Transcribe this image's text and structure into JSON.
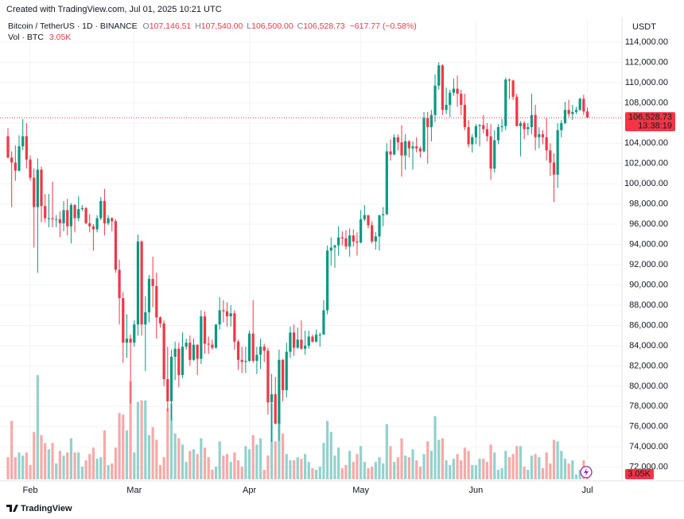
{
  "watermark": "Created with TradingView.com, Jul 01, 2025 10:21 UTC",
  "brand": "TradingView",
  "legend": {
    "title": "Bitcoin / TetherUS · 1D · BINANCE",
    "ohlc": [
      {
        "key": "O",
        "value": "107,146.51"
      },
      {
        "key": "H",
        "value": "107,540.00"
      },
      {
        "key": "L",
        "value": "106,500.00"
      },
      {
        "key": "C",
        "value": "106,528.73"
      }
    ],
    "change": "−617.77 (−0.58%)",
    "volume_name": "Vol · BTC"
  },
  "chart_data": {
    "type": "candlestick",
    "y_unit": "USDT",
    "up_color": "#089981",
    "down_color": "#f23645",
    "volume_up_color": "#92d2cc",
    "volume_down_color": "#f7a9a7",
    "ylim": [
      70800,
      116200
    ],
    "yticks": [
      {
        "value": 72000,
        "label": "72,000.00"
      },
      {
        "value": 74000,
        "label": "74,000.00"
      },
      {
        "value": 76000,
        "label": "76,000.00"
      },
      {
        "value": 78000,
        "label": "78,000.00"
      },
      {
        "value": 80000,
        "label": "80,000.00"
      },
      {
        "value": 82000,
        "label": "82,000.00"
      },
      {
        "value": 84000,
        "label": "84,000.00"
      },
      {
        "value": 86000,
        "label": "86,000.00"
      },
      {
        "value": 88000,
        "label": "88,000.00"
      },
      {
        "value": 90000,
        "label": "90,000.00"
      },
      {
        "value": 92000,
        "label": "92,000.00"
      },
      {
        "value": 94000,
        "label": "94,000.00"
      },
      {
        "value": 96000,
        "label": "96,000.00"
      },
      {
        "value": 98000,
        "label": "98,000.00"
      },
      {
        "value": 100000,
        "label": "100,000.00"
      },
      {
        "value": 102000,
        "label": "102,000.00"
      },
      {
        "value": 104000,
        "label": "104,000.00"
      },
      {
        "value": 106000,
        "label": "106,000.00"
      },
      {
        "value": 108000,
        "label": "108,000.00"
      },
      {
        "value": 110000,
        "label": "110,000.00"
      },
      {
        "value": 112000,
        "label": "112,000.00"
      },
      {
        "value": 114000,
        "label": "114,000.00"
      }
    ],
    "grid": true,
    "last_price_label": "106,528.73",
    "countdown": "13:38:19",
    "last_volume_label": "3.05K",
    "categories": [
      null,
      null,
      null,
      null,
      null,
      null,
      "Feb",
      null,
      null,
      null,
      null,
      null,
      null,
      null,
      null,
      null,
      null,
      null,
      null,
      null,
      null,
      null,
      null,
      null,
      null,
      null,
      null,
      null,
      null,
      null,
      null,
      null,
      null,
      null,
      "Mar",
      null,
      null,
      null,
      null,
      null,
      null,
      null,
      null,
      null,
      null,
      null,
      null,
      null,
      null,
      null,
      null,
      null,
      null,
      null,
      null,
      null,
      null,
      null,
      null,
      null,
      null,
      null,
      null,
      null,
      null,
      "Apr",
      null,
      null,
      null,
      null,
      null,
      null,
      null,
      null,
      null,
      null,
      null,
      null,
      null,
      null,
      null,
      null,
      null,
      null,
      null,
      null,
      null,
      null,
      null,
      null,
      null,
      null,
      null,
      null,
      null,
      "May",
      null,
      null,
      null,
      null,
      null,
      null,
      null,
      null,
      null,
      null,
      null,
      null,
      null,
      null,
      null,
      null,
      null,
      null,
      null,
      null,
      null,
      null,
      null,
      null,
      null,
      null,
      null,
      null,
      null,
      null,
      "Jun",
      null,
      null,
      null,
      null,
      null,
      null,
      null,
      null,
      null,
      null,
      null,
      null,
      null,
      null,
      null,
      null,
      null,
      null,
      null,
      null,
      null,
      null,
      null,
      null,
      null,
      null,
      null,
      null,
      null,
      "Jul"
    ],
    "open": [
      104700,
      102600,
      102100,
      101300,
      103700,
      104700,
      102400,
      100600,
      97700,
      101400,
      97800,
      96600,
      96600,
      96500,
      96500,
      96100,
      97400,
      95800,
      97900,
      96600,
      97500,
      97600,
      96100,
      95800,
      95500,
      96600,
      98300,
      96100,
      96600,
      96300,
      91500,
      88700,
      84300,
      84700,
      84300,
      86100,
      94300,
      86100,
      87300,
      90600,
      89900,
      86800,
      86200,
      80700,
      78500,
      82900,
      83700,
      81100,
      83900,
      84300,
      82600,
      84100,
      82700,
      86900,
      84200,
      84100,
      83800,
      86100,
      87500,
      87400,
      86900,
      87200,
      84400,
      82600,
      82400,
      82500,
      85200,
      82500,
      83100,
      83900,
      83500,
      78400,
      79200,
      76300,
      82600,
      79600,
      83400,
      85300,
      83800,
      84600,
      83700,
      84000,
      84900,
      84400,
      85100,
      85100,
      87500,
      93400,
      93700,
      93900,
      94700,
      94600,
      93800,
      94900,
      94300,
      94200,
      96500,
      96900,
      95900,
      94300,
      94800,
      96900,
      97000,
      103200,
      102900,
      104600,
      104100,
      102800,
      104200,
      103500,
      103700,
      103500,
      103200,
      106500,
      105600,
      106800,
      109700,
      111700,
      107300,
      107800,
      109000,
      109400,
      108900,
      107800,
      105600,
      103900,
      104600,
      105700,
      105800,
      105400,
      104700,
      101500,
      104300,
      105600,
      105700,
      110300,
      110200,
      108600,
      105700,
      106000,
      105400,
      105600,
      106800,
      104600,
      104900,
      104600,
      103300,
      102100,
      100900,
      105300,
      106000,
      107300,
      106900,
      107100,
      107300,
      108400,
      107146.51
    ],
    "high": [
      105500,
      103200,
      103800,
      104800,
      106400,
      106000,
      102800,
      101500,
      102500,
      101700,
      99000,
      99000,
      100200,
      96900,
      97300,
      98300,
      98500,
      98100,
      98000,
      98800,
      97900,
      97700,
      97000,
      96000,
      96900,
      98700,
      99500,
      96900,
      96700,
      96500,
      92500,
      89300,
      87100,
      85100,
      86500,
      95000,
      94400,
      88900,
      91000,
      92800,
      91200,
      86900,
      86500,
      83900,
      83600,
      84400,
      84300,
      85300,
      84700,
      85000,
      84700,
      84100,
      87500,
      87400,
      84900,
      84600,
      86100,
      88800,
      88500,
      88300,
      88000,
      87500,
      84600,
      83900,
      83900,
      85500,
      88500,
      83900,
      84700,
      84200,
      83800,
      81200,
      80900,
      83600,
      82700,
      84300,
      85900,
      86100,
      85800,
      86500,
      85500,
      85500,
      85100,
      85600,
      85300,
      88500,
      93900,
      94700,
      94000,
      95800,
      95300,
      95400,
      95600,
      95500,
      95200,
      97400,
      97900,
      96900,
      96300,
      95200,
      96900,
      97700,
      104000,
      104400,
      104900,
      104900,
      105800,
      104900,
      104300,
      104200,
      104600,
      103700,
      107100,
      107100,
      107300,
      110800,
      112000,
      111800,
      109500,
      109300,
      110400,
      110700,
      109300,
      108900,
      106300,
      104900,
      105900,
      105900,
      106800,
      106000,
      105900,
      105300,
      105900,
      106400,
      110500,
      110400,
      110300,
      108900,
      106200,
      106200,
      106000,
      108900,
      107800,
      105600,
      105300,
      106500,
      104000,
      103000,
      106000,
      106300,
      108100,
      108300,
      107800,
      107600,
      108500,
      108800,
      107540
    ],
    "low": [
      102500,
      97700,
      100300,
      101200,
      103300,
      101500,
      100300,
      93700,
      91200,
      96200,
      96200,
      95700,
      95700,
      95700,
      94700,
      95300,
      94900,
      94100,
      95200,
      96300,
      97300,
      96000,
      95200,
      93400,
      95200,
      96400,
      94900,
      95900,
      95300,
      91200,
      86100,
      82300,
      82800,
      78300,
      83900,
      85000,
      85000,
      81500,
      86300,
      87800,
      84700,
      85800,
      80000,
      77500,
      76600,
      80600,
      79900,
      80800,
      83600,
      82000,
      82500,
      81100,
      82200,
      83200,
      83200,
      83600,
      83700,
      85600,
      86300,
      85900,
      85900,
      83600,
      81600,
      81300,
      81300,
      82400,
      82300,
      81200,
      81700,
      82400,
      77200,
      74500,
      76200,
      74600,
      78500,
      78900,
      82800,
      83000,
      83700,
      83600,
      83100,
      83700,
      84300,
      84300,
      83900,
      85100,
      87100,
      91900,
      91700,
      92900,
      93900,
      93500,
      92800,
      93800,
      92900,
      94100,
      96300,
      95600,
      94100,
      93500,
      93400,
      95800,
      96900,
      102300,
      102800,
      103300,
      100700,
      101400,
      102600,
      101400,
      103100,
      102600,
      103100,
      102000,
      104200,
      106100,
      109300,
      106800,
      106900,
      106600,
      108700,
      107600,
      106800,
      105300,
      103600,
      103100,
      103900,
      103700,
      105000,
      104200,
      100400,
      101100,
      103900,
      105100,
      105300,
      108400,
      108300,
      105700,
      102700,
      104400,
      104800,
      104900,
      103300,
      103500,
      103900,
      102300,
      100800,
      98200,
      99600,
      104600,
      105900,
      106600,
      106300,
      106900,
      107200,
      106800,
      106500
    ],
    "close": [
      102600,
      102100,
      101300,
      103700,
      104700,
      102400,
      100600,
      97700,
      101400,
      97800,
      96600,
      96600,
      96500,
      96500,
      96100,
      97400,
      95800,
      97900,
      96600,
      97500,
      97600,
      96100,
      95800,
      95500,
      96600,
      98300,
      96100,
      96600,
      96300,
      91500,
      88700,
      84300,
      84700,
      84300,
      86100,
      94300,
      86100,
      87300,
      90600,
      89900,
      86800,
      86200,
      80700,
      78500,
      82900,
      83700,
      81100,
      83900,
      84300,
      82600,
      84100,
      82700,
      86900,
      84200,
      84100,
      83800,
      86100,
      87500,
      87400,
      86900,
      87200,
      84400,
      82600,
      82400,
      82500,
      85200,
      82500,
      83100,
      83900,
      83500,
      78400,
      79200,
      76300,
      82600,
      79600,
      83400,
      85300,
      83800,
      84600,
      83700,
      84000,
      84900,
      84400,
      85100,
      85100,
      87500,
      93400,
      93700,
      93900,
      94700,
      94600,
      93800,
      94900,
      94300,
      94200,
      96500,
      96900,
      95900,
      94300,
      94800,
      96900,
      97000,
      103200,
      102900,
      104600,
      104100,
      102800,
      104200,
      103500,
      103700,
      103500,
      103200,
      106500,
      105600,
      106800,
      109700,
      111700,
      107300,
      107800,
      109000,
      109400,
      108900,
      107800,
      105600,
      103900,
      104600,
      105700,
      105800,
      105400,
      104700,
      101500,
      104300,
      105600,
      105700,
      110300,
      110200,
      108600,
      105700,
      106000,
      105400,
      105600,
      106800,
      104600,
      104900,
      104600,
      103300,
      102100,
      100900,
      105300,
      106000,
      107300,
      106900,
      107100,
      107300,
      108400,
      107146.51,
      106528.73
    ],
    "volume": [
      14000,
      37000,
      14000,
      17000,
      15000,
      17000,
      9000,
      30000,
      66000,
      28000,
      23000,
      19000,
      23000,
      10000,
      18000,
      15000,
      17000,
      26000,
      17000,
      17000,
      8000,
      12000,
      16000,
      20000,
      13000,
      14000,
      31000,
      9000,
      10000,
      20000,
      42000,
      41000,
      31000,
      62000,
      17000,
      49000,
      50000,
      50000,
      28000,
      33000,
      25000,
      9000,
      14000,
      45000,
      48000,
      29000,
      26000,
      22000,
      11000,
      18000,
      19000,
      16000,
      26000,
      20000,
      14000,
      6000,
      8000,
      24000,
      15000,
      16000,
      11000,
      17000,
      12000,
      8000,
      21000,
      19000,
      28000,
      22000,
      26000,
      6000,
      15000,
      48000,
      24000,
      42000,
      29000,
      16000,
      12000,
      12000,
      14000,
      13000,
      16000,
      11000,
      7000,
      6000,
      8000,
      23000,
      37000,
      30000,
      15000,
      20000,
      7000,
      9000,
      18000,
      11000,
      16000,
      21000,
      11000,
      7000,
      8000,
      11000,
      14000,
      10000,
      35000,
      21000,
      11000,
      14000,
      26000,
      15000,
      14000,
      19000,
      12000,
      8000,
      16000,
      24000,
      18000,
      40000,
      25000,
      26000,
      12000,
      9000,
      13000,
      16000,
      12000,
      20000,
      18000,
      9000,
      9000,
      13000,
      13000,
      11000,
      22000,
      17000,
      6000,
      7000,
      18000,
      14000,
      16000,
      21000,
      21000,
      8000,
      6000,
      15000,
      16000,
      14000,
      7000,
      17000,
      10000,
      25000,
      24000,
      18000,
      13000,
      10000,
      12000,
      3000,
      6000,
      12000,
      3050
    ]
  }
}
